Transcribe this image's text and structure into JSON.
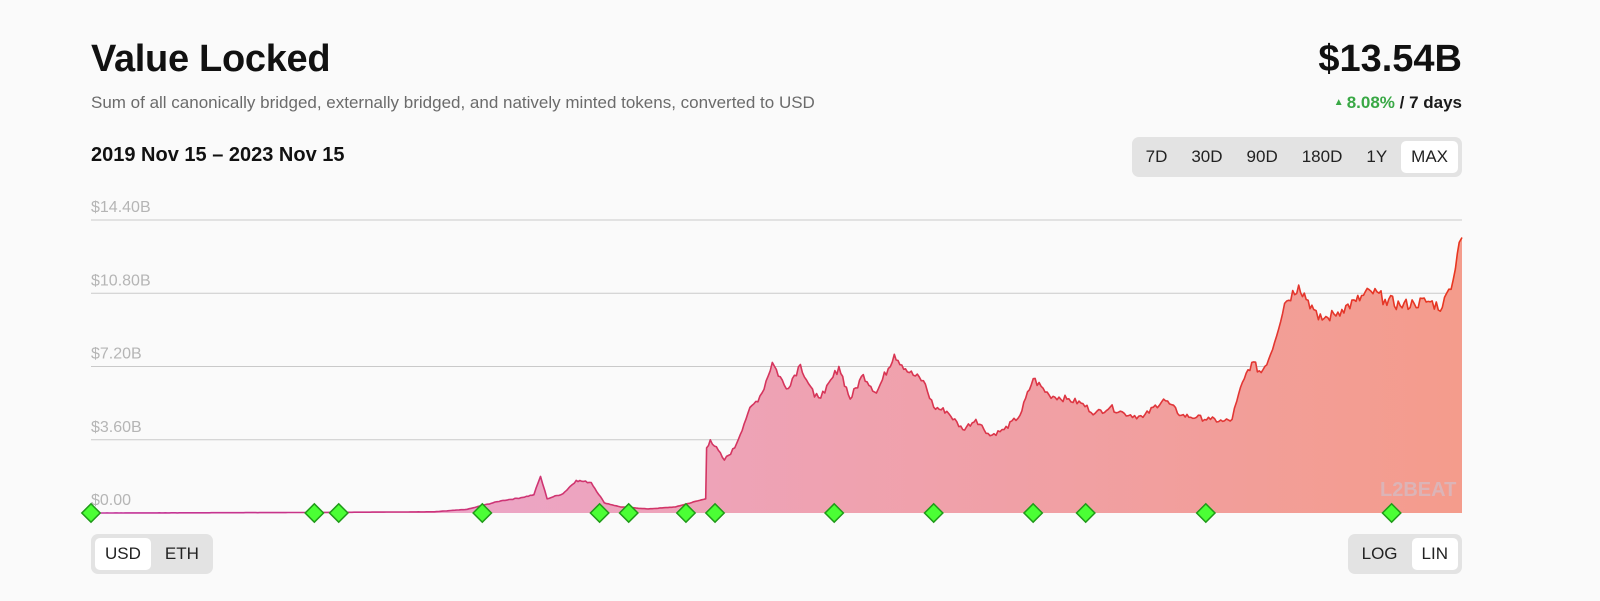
{
  "header": {
    "title": "Value Locked",
    "subtitle": "Sum of all canonically bridged, externally bridged, and natively minted tokens, converted to USD",
    "value": "$13.54B",
    "change_pct": "8.08%",
    "change_period": "/ 7 days"
  },
  "range_label": "2019 Nov 15 – 2023 Nov 15",
  "timeframes": [
    {
      "label": "7D",
      "active": false
    },
    {
      "label": "30D",
      "active": false
    },
    {
      "label": "90D",
      "active": false
    },
    {
      "label": "180D",
      "active": false
    },
    {
      "label": "1Y",
      "active": false
    },
    {
      "label": "MAX",
      "active": true
    }
  ],
  "currency_options": [
    {
      "label": "USD",
      "active": true
    },
    {
      "label": "ETH",
      "active": false
    }
  ],
  "scale_options": [
    {
      "label": "LOG",
      "active": false
    },
    {
      "label": "LIN",
      "active": true
    }
  ],
  "watermark": "L2BEAT",
  "colors": {
    "accent_green": "#39a845",
    "line_start": "#c2349b",
    "line_end": "#e8361f",
    "fill_start": "#e9a9dc",
    "fill_end": "#f49c8c",
    "milestone": "#4bff35"
  },
  "chart_data": {
    "type": "area",
    "x_range": [
      "2019-11-15",
      "2023-11-15"
    ],
    "ylim": [
      0,
      14.4
    ],
    "y_unit": "billion USD",
    "y_ticks": [
      "$0.00",
      "$3.60B",
      "$7.20B",
      "$10.80B",
      "$14.40B"
    ],
    "y_tick_values": [
      0,
      3.6,
      7.2,
      10.8,
      14.4
    ],
    "grid": true,
    "series": [
      {
        "x": [
          "2019-11-15",
          "2020-03-01",
          "2020-06-01",
          "2020-09-01",
          "2020-11-15",
          "2020-12-20",
          "2021-01-25",
          "2021-02-15",
          "2021-03-01",
          "2021-03-08",
          "2021-03-15",
          "2021-04-01",
          "2021-04-15",
          "2021-05-01",
          "2021-05-15",
          "2021-06-01",
          "2021-07-01",
          "2021-07-30",
          "2021-08-31",
          "2021-09-01",
          "2021-09-05",
          "2021-09-20",
          "2021-10-01",
          "2021-10-15",
          "2021-10-30",
          "2021-11-10",
          "2021-11-25",
          "2021-12-10",
          "2021-12-25",
          "2022-01-05",
          "2022-01-20",
          "2022-02-01",
          "2022-02-15",
          "2022-03-01",
          "2022-03-20",
          "2022-04-05",
          "2022-04-20",
          "2022-05-01",
          "2022-05-15",
          "2022-06-01",
          "2022-06-15",
          "2022-06-30",
          "2022-07-15",
          "2022-08-01",
          "2022-08-15",
          "2022-09-01",
          "2022-09-20",
          "2022-10-05",
          "2022-10-20",
          "2022-11-05",
          "2022-11-20",
          "2022-12-10",
          "2023-01-01",
          "2023-01-20",
          "2023-02-05",
          "2023-02-20",
          "2023-03-05",
          "2023-03-15",
          "2023-03-20",
          "2023-03-28",
          "2023-04-05",
          "2023-04-15",
          "2023-04-25",
          "2023-05-10",
          "2023-05-25",
          "2023-06-10",
          "2023-06-15",
          "2023-06-25",
          "2023-07-10",
          "2023-07-25",
          "2023-08-10",
          "2023-08-25",
          "2023-09-10",
          "2023-09-25",
          "2023-10-10",
          "2023-10-25",
          "2023-11-01",
          "2023-11-08",
          "2023-11-12",
          "2023-11-15"
        ],
        "y": [
          0.0,
          0.01,
          0.02,
          0.04,
          0.06,
          0.18,
          0.6,
          0.75,
          0.9,
          1.8,
          0.7,
          0.95,
          1.6,
          1.5,
          0.5,
          0.3,
          0.2,
          0.3,
          0.7,
          3.2,
          3.6,
          2.6,
          3.2,
          4.9,
          5.9,
          7.4,
          6.1,
          7.3,
          5.7,
          5.9,
          7.2,
          5.6,
          6.8,
          5.9,
          7.8,
          6.9,
          6.5,
          5.2,
          5.0,
          4.1,
          4.6,
          3.8,
          4.1,
          4.8,
          6.6,
          5.8,
          5.6,
          5.4,
          4.9,
          5.2,
          4.9,
          4.7,
          5.6,
          4.8,
          4.7,
          4.6,
          4.5,
          4.6,
          5.5,
          6.6,
          7.4,
          6.9,
          7.8,
          10.3,
          11.2,
          10.0,
          9.5,
          9.6,
          10.0,
          10.4,
          10.9,
          10.5,
          10.2,
          10.3,
          10.4,
          10.1,
          11.0,
          12.0,
          13.3,
          13.54
        ]
      }
    ],
    "milestones": [
      "2019-11-15",
      "2020-07-10",
      "2020-08-05",
      "2021-01-05",
      "2021-05-10",
      "2021-06-10",
      "2021-08-10",
      "2021-09-10",
      "2022-01-15",
      "2022-05-01",
      "2022-08-15",
      "2022-10-10",
      "2023-02-15",
      "2023-09-01"
    ]
  }
}
